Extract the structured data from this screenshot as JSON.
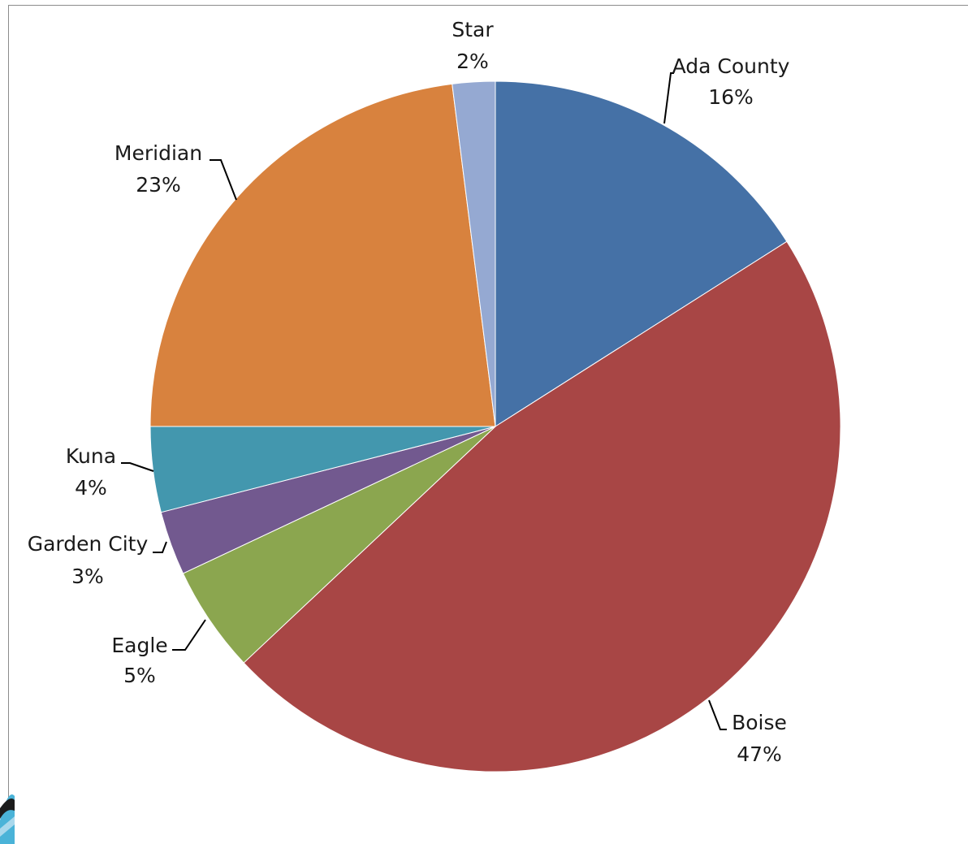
{
  "chart_data": {
    "type": "pie",
    "title": "",
    "start_angle_deg": 0,
    "direction": "clockwise",
    "slices": [
      {
        "label": "Ada County",
        "value": 16,
        "display": "16%",
        "color": "#4571a6"
      },
      {
        "label": "Boise",
        "value": 47,
        "display": "47%",
        "color": "#a84645"
      },
      {
        "label": "Eagle",
        "value": 5,
        "display": "5%",
        "color": "#8ba64f"
      },
      {
        "label": "Garden City",
        "value": 3,
        "display": "3%",
        "color": "#72598f"
      },
      {
        "label": "Kuna",
        "value": 4,
        "display": "4%",
        "color": "#4397ae"
      },
      {
        "label": "Meridian",
        "value": 23,
        "display": "23%",
        "color": "#d8823e"
      },
      {
        "label": "Star",
        "value": 2,
        "display": "2%",
        "color": "#95a9d2"
      }
    ]
  }
}
